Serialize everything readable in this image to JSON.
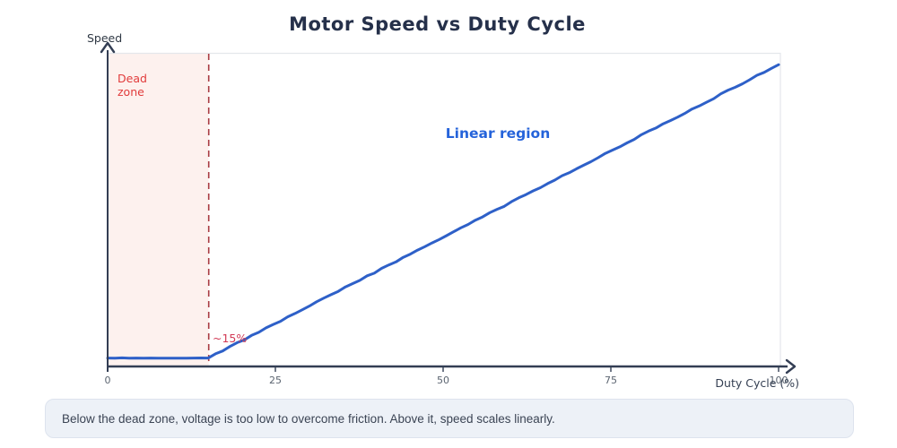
{
  "chart_data": {
    "type": "line",
    "title": "Motor Speed vs Duty Cycle",
    "xlabel": "Duty Cycle (%)",
    "ylabel": "Speed",
    "xlim": [
      0,
      100
    ],
    "ylim": [
      0,
      1
    ],
    "x_ticks": [
      "0",
      "25",
      "50",
      "75",
      "100"
    ],
    "x_tick_values": [
      0,
      25,
      50,
      75,
      100
    ],
    "y_ticks": [],
    "grid": false,
    "legend": false,
    "style": "hand-drawn",
    "series": [
      {
        "name": "speed",
        "color": "#2e60c8",
        "stroke_width": 3,
        "points": [
          [
            0,
            0.027
          ],
          [
            15,
            0.027
          ],
          [
            100,
            0.965
          ]
        ]
      }
    ],
    "dead_zone": {
      "x0": 0,
      "x1": 15,
      "fill": "#fdf1ee",
      "boundary_x": 15,
      "boundary_style": "dashed",
      "boundary_color": "#a93b42"
    },
    "annotations": [
      {
        "id": "dead-zone",
        "text": "Dead zone",
        "color": "#e13b3b"
      },
      {
        "id": "threshold",
        "text": "~15%",
        "color": "#d23a55"
      },
      {
        "id": "linear-region",
        "text": "Linear region",
        "color": "#2563da"
      }
    ],
    "axis_color": "#333e54",
    "tick_label_color": "#5b6470",
    "plot_border_color": "#e4e7eb"
  },
  "caption_box": {
    "text": "Below the dead zone, voltage is too low to overcome friction. Above it, speed scales linearly.",
    "bg": "#edf1f7",
    "border": "#dde3ee",
    "text_color": "#3b4454"
  }
}
